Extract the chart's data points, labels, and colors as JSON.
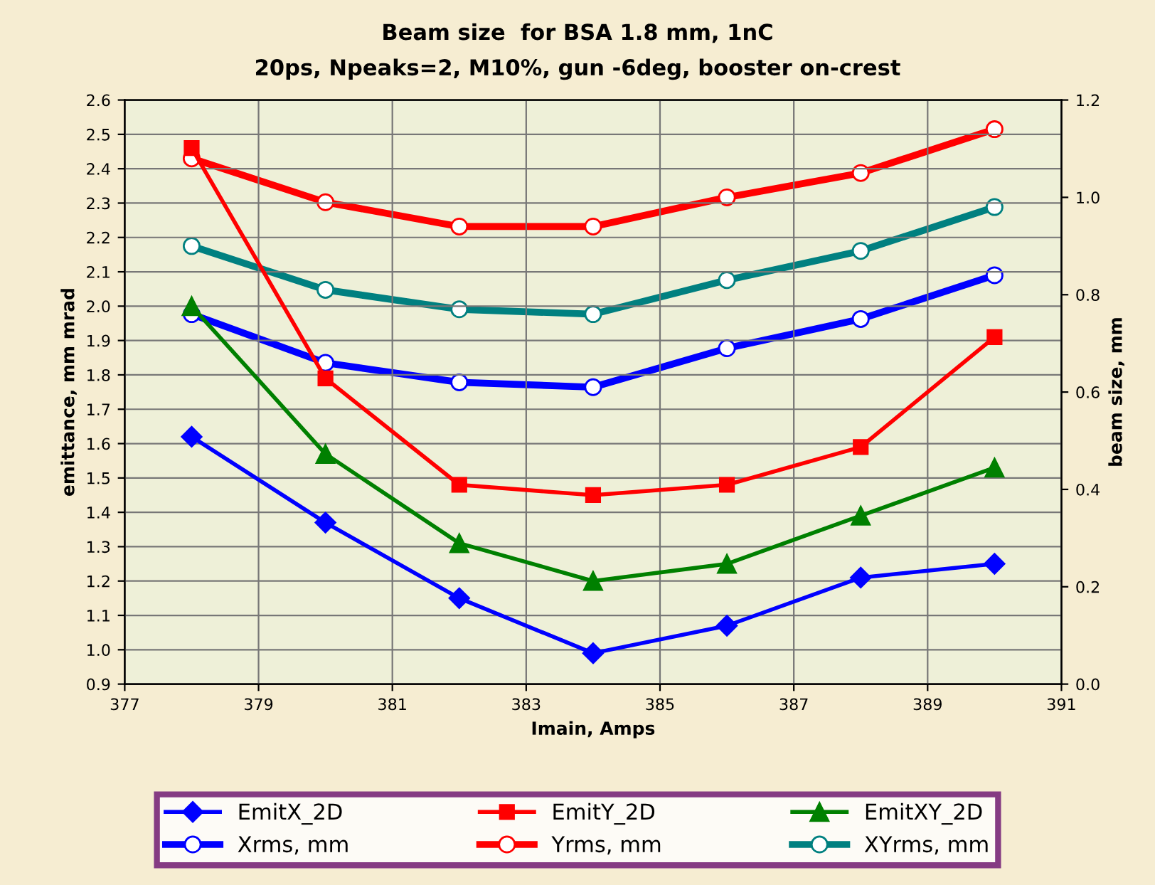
{
  "chart_data": {
    "type": "line",
    "title": "Beam size  for BSA 1.8 mm, 1nC",
    "subtitle": "20ps, Npeaks=2, M10%, gun -6deg, booster on-crest",
    "xlabel": "Imain, Amps",
    "ylabel": "emittance, mm mrad",
    "y2label": "beam size, mm",
    "x": [
      378,
      380,
      382,
      384,
      386,
      388,
      390
    ],
    "xlim": [
      377,
      391
    ],
    "xticks": [
      377,
      379,
      381,
      383,
      385,
      387,
      389,
      391
    ],
    "ylim": [
      0.9,
      2.6
    ],
    "yticks": [
      0.9,
      {
        "value": 1,
        "label": "1.0"
      },
      1.1,
      1.2,
      1.3,
      1.4,
      1.5,
      1.6,
      1.7,
      1.8,
      1.9,
      {
        "value": 2,
        "label": "2.0"
      },
      2.1,
      2.2,
      2.3,
      2.4,
      2.5,
      2.6
    ],
    "y2lim": [
      0.0,
      1.2
    ],
    "y2ticks": [
      {
        "value": 0,
        "label": "0.0"
      },
      0.2,
      0.4,
      0.6,
      0.8,
      {
        "value": 1,
        "label": "1.0"
      },
      1.2
    ],
    "grid": true,
    "legend": "bottom",
    "line_style": "solid",
    "series": [
      {
        "name": "EmitX_2D",
        "color": "#0000ff",
        "marker": "diamond",
        "values": [
          1.62,
          1.37,
          1.15,
          0.99,
          1.07,
          1.21,
          1.25
        ]
      },
      {
        "name": "EmitY_2D",
        "color": "#ff0000",
        "marker": "square",
        "values": [
          2.46,
          1.79,
          1.48,
          1.45,
          1.48,
          1.59,
          1.91
        ]
      },
      {
        "name": "EmitXY_2D",
        "color": "#008000",
        "marker": "triangle",
        "values": [
          2.0,
          1.57,
          1.31,
          1.2,
          1.25,
          1.39,
          1.53
        ]
      },
      {
        "name": "Xrms, mm",
        "color": "#0000ff",
        "marker": "circle",
        "axis": "y2",
        "values": [
          0.76,
          0.66,
          0.62,
          0.61,
          0.69,
          0.75,
          0.84
        ]
      },
      {
        "name": "Yrms, mm",
        "color": "#ff0000",
        "marker": "circle",
        "axis": "y2",
        "values": [
          1.08,
          0.99,
          0.94,
          0.94,
          1.0,
          1.05,
          1.14
        ]
      },
      {
        "name": "XYrms, mm",
        "color": "#008080",
        "marker": "circle",
        "axis": "y2",
        "values": [
          0.9,
          0.81,
          0.77,
          0.76,
          0.83,
          0.89,
          0.98
        ]
      }
    ]
  }
}
